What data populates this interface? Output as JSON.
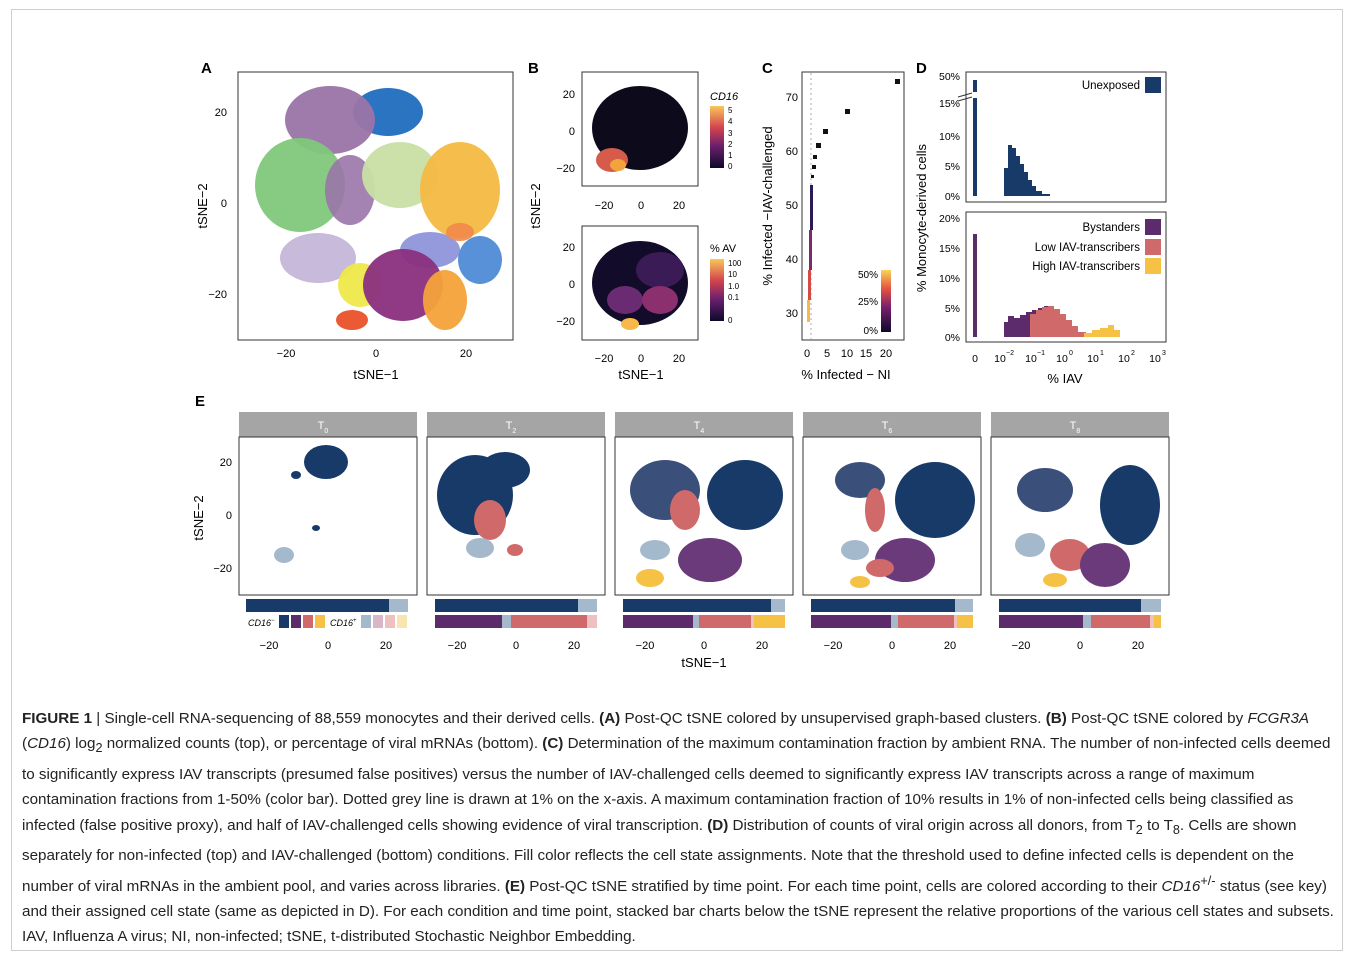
{
  "figure": {
    "panels": {
      "A": {
        "letter": "A",
        "xlabel": "tSNE−1",
        "ylabel": "tSNE−2",
        "xticks": [
          "−20",
          "0",
          "20"
        ],
        "yticks": [
          "20",
          "0",
          "−20"
        ]
      },
      "B": {
        "letter": "B",
        "xlabel": "tSNE−1",
        "ylabel": "tSNE−2",
        "xticks": [
          "−20",
          "0",
          "20"
        ],
        "yticks": [
          "20",
          "0",
          "−20"
        ],
        "top_legend_title": "CD16",
        "top_legend_ticks": [
          "5",
          "4",
          "3",
          "2",
          "1",
          "0"
        ],
        "bottom_legend_title": "% AV",
        "bottom_legend_ticks": [
          "100",
          "10",
          "1.0",
          "0.1",
          "0"
        ]
      },
      "C": {
        "letter": "C",
        "xlabel": "% Infected − NI",
        "ylabel": "% Infected −IAV-challenged",
        "xticks": [
          "0",
          "5",
          "10",
          "15",
          "20"
        ],
        "yticks": [
          "70",
          "60",
          "50",
          "40",
          "30"
        ],
        "legend_ticks": [
          "50%",
          "25%",
          "0%"
        ]
      },
      "D": {
        "letter": "D",
        "xlabel": "% IAV",
        "ylabel": "% Monocyte-derived cells",
        "top_yticks": [
          "50%",
          "15%",
          "10%",
          "5%",
          "0%"
        ],
        "bottom_yticks": [
          "20%",
          "15%",
          "10%",
          "5%",
          "0%"
        ],
        "xticks_base": [
          "0",
          "10",
          "10",
          "10",
          "10",
          "10"
        ],
        "xticks_exp": [
          "",
          "−2",
          "−1",
          "0",
          "1",
          "2"
        ],
        "top_legend": [
          {
            "label": "Unexposed",
            "color": "#1b3a6b"
          }
        ],
        "bottom_legend": [
          {
            "label": "Bystanders",
            "color": "#5b2b6b"
          },
          {
            "label": "Low IAV-transcribers",
            "color": "#d06a6a"
          },
          {
            "label": "High IAV-transcribers",
            "color": "#f6c246"
          }
        ]
      },
      "E": {
        "letter": "E",
        "xlabel": "tSNE−1",
        "ylabel": "tSNE−2",
        "xticks": [
          "−20",
          "0",
          "20"
        ],
        "yticks": [
          "20",
          "0",
          "−20"
        ],
        "facets": [
          {
            "label": "T",
            "sub": "0"
          },
          {
            "label": "T",
            "sub": "2"
          },
          {
            "label": "T",
            "sub": "4"
          },
          {
            "label": "T",
            "sub": "6"
          },
          {
            "label": "T",
            "sub": "8"
          }
        ],
        "key_minus": "CD16",
        "key_minus_sup": "−",
        "key_plus": "CD16",
        "key_plus_sup": "+"
      }
    },
    "colors": {
      "navy": "#173a68",
      "lightblue": "#a5b9cc",
      "purple": "#5b2b6b",
      "salmon": "#d06a6a",
      "yellow": "#f6c246",
      "strip": "#a5a5a5"
    }
  },
  "caption": {
    "label": "FIGURE 1",
    "sep": " | ",
    "t1": "Single-cell RNA-sequencing of 88,559 monocytes and their derived cells. ",
    "a": "(A)",
    "t2": " Post-QC tSNE colored by unsupervised graph-based clusters. ",
    "b": "(B)",
    "t3": " Post-QC tSNE colored by ",
    "gene": "FCGR3A",
    "t3b": " (",
    "gene2": "CD16",
    "t3c": ") log",
    "sub2": "2",
    "t4": " normalized counts (top), or percentage of viral mRNAs (bottom). ",
    "c": "(C)",
    "t5": " Determination of the maximum contamination fraction by ambient RNA. The number of non-infected cells deemed to significantly express IAV transcripts (presumed false positives) versus the number of IAV-challenged cells deemed to significantly express IAV transcripts across a range of maximum contamination fractions from 1-50% (color bar). Dotted grey line is drawn at 1% on the x-axis. A maximum contamination fraction of 10% results in 1% of non-infected cells being classified as infected (false positive proxy), and half of IAV-challenged cells showing evidence of viral transcription. ",
    "d": "(D)",
    "t6": " Distribution of counts of viral origin across all donors, from T",
    "s2": "2",
    "t6b": " to T",
    "s8": "8",
    "t7": ". Cells are shown separately for non-infected (top) and IAV-challenged (bottom) conditions. Fill color reflects the cell state assignments. Note that the threshold used to define infected cells is dependent on the number of viral mRNAs in the ambient pool, and varies across libraries. ",
    "e": "(E)",
    "t8": " Post-QC tSNE stratified by time point. For each time point, cells are colored according to their ",
    "gene3": "CD16",
    "sup": "+/-",
    "t9": " status (see key) and their assigned cell state (same as depicted in D). For each condition and time point, stacked bar charts below the tSNE represent the relative proportions of the various cell states and subsets. IAV, Influenza A virus; NI, non-infected; tSNE, t-distributed Stochastic Neighbor Embedding."
  }
}
